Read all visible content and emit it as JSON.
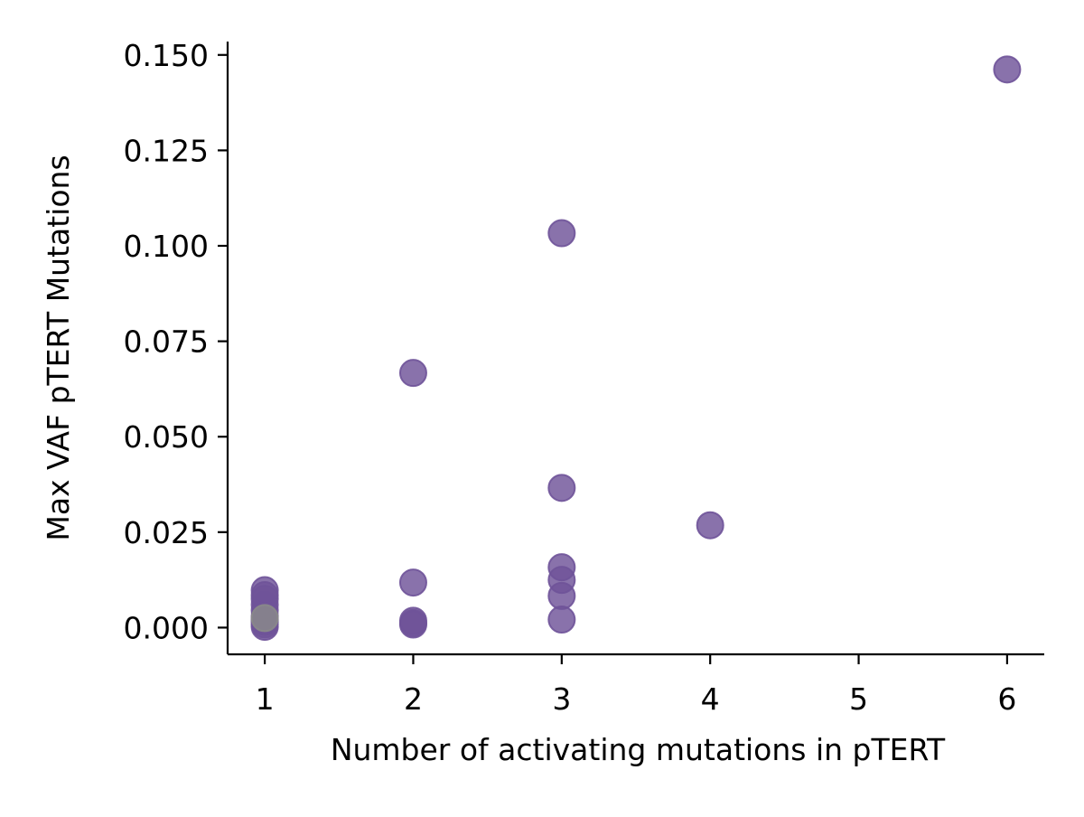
{
  "chart_data": {
    "type": "scatter",
    "title": "",
    "xlabel": "Number of activating mutations in pTERT",
    "ylabel": "Max VAF pTERT Mutations",
    "xlim": [
      0.75,
      6.25
    ],
    "ylim": [
      -0.007,
      0.1535
    ],
    "xticks": [
      1,
      2,
      3,
      4,
      5,
      6
    ],
    "xtick_labels": [
      "1",
      "2",
      "3",
      "4",
      "5",
      "6"
    ],
    "yticks": [
      0.0,
      0.025,
      0.05,
      0.075,
      0.1,
      0.125,
      0.15
    ],
    "ytick_labels": [
      "0.000",
      "0.025",
      "0.050",
      "0.075",
      "0.100",
      "0.125",
      "0.150"
    ],
    "grid": false,
    "legend": "none",
    "marker_color": "#6f5399",
    "highlight_color": "#8a8a8a",
    "points": [
      {
        "x": 1,
        "y": 0.0002
      },
      {
        "x": 1,
        "y": 0.0008
      },
      {
        "x": 1,
        "y": 0.0015
      },
      {
        "x": 1,
        "y": 0.002
      },
      {
        "x": 1,
        "y": 0.003
      },
      {
        "x": 1,
        "y": 0.0045
      },
      {
        "x": 1,
        "y": 0.006
      },
      {
        "x": 1,
        "y": 0.0075
      },
      {
        "x": 1,
        "y": 0.0085
      },
      {
        "x": 1,
        "y": 0.0098
      },
      {
        "x": 1,
        "y": 0.0025,
        "highlight": true
      },
      {
        "x": 2,
        "y": 0.0008
      },
      {
        "x": 2,
        "y": 0.0012
      },
      {
        "x": 2,
        "y": 0.0018
      },
      {
        "x": 2,
        "y": 0.0118
      },
      {
        "x": 2,
        "y": 0.0667
      },
      {
        "x": 3,
        "y": 0.0021
      },
      {
        "x": 3,
        "y": 0.0083
      },
      {
        "x": 3,
        "y": 0.0125
      },
      {
        "x": 3,
        "y": 0.0158
      },
      {
        "x": 3,
        "y": 0.0366
      },
      {
        "x": 3,
        "y": 0.1033
      },
      {
        "x": 4,
        "y": 0.0268
      },
      {
        "x": 6,
        "y": 0.1462
      }
    ]
  }
}
